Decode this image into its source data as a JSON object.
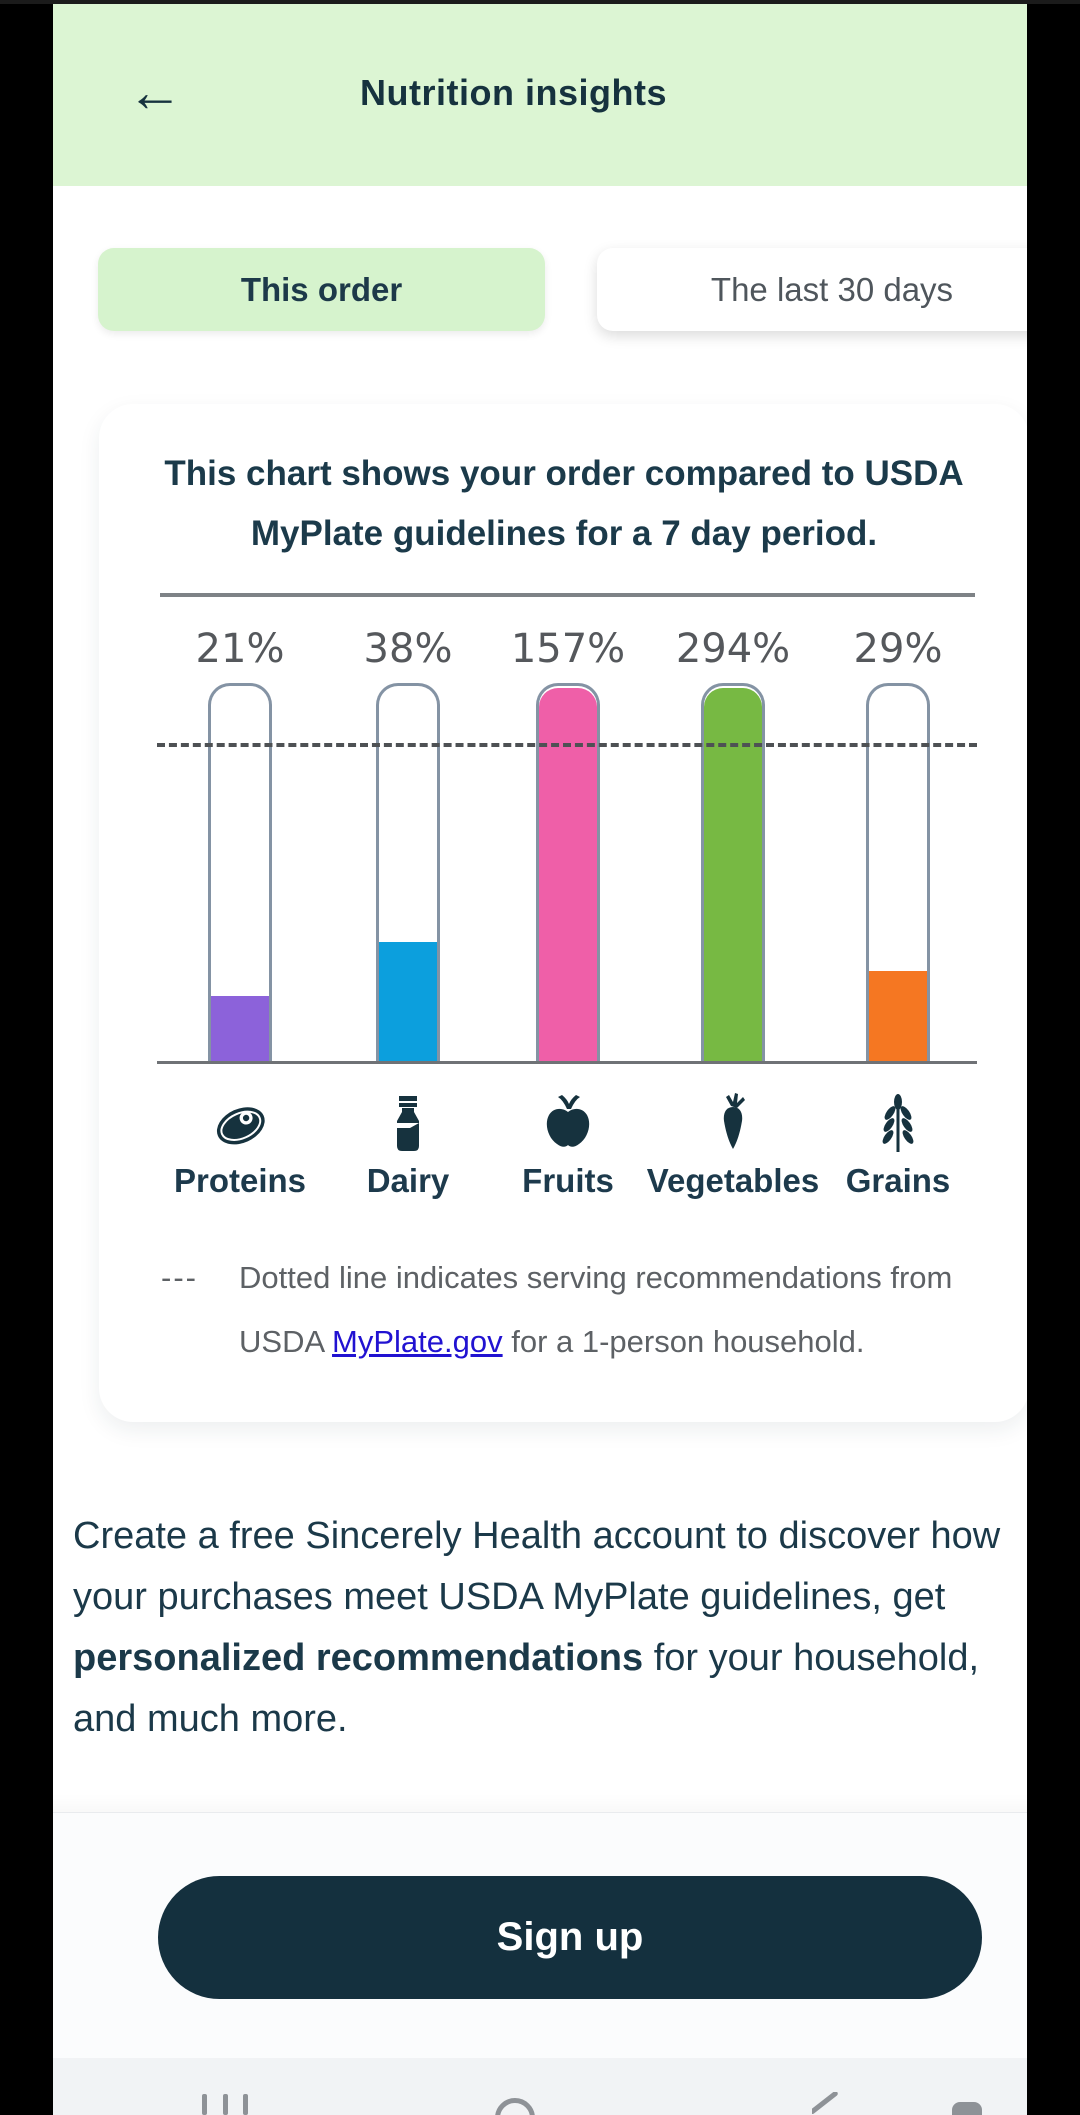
{
  "header": {
    "title": "Nutrition insights",
    "back_glyph": "←"
  },
  "tabs": [
    {
      "label": "This order",
      "selected": true
    },
    {
      "label": "The last 30 days",
      "selected": false
    }
  ],
  "card": {
    "title": "This chart shows your order compared to USDA MyPlate guidelines for a 7 day period.",
    "legend": {
      "marker": "---",
      "text_before_link": "Dotted line indicates serving recommendations from USDA ",
      "link_text": "MyPlate.gov",
      "text_after_link": " for a 1-person household."
    }
  },
  "chart_data": {
    "type": "bar",
    "title": "This chart shows your order compared to USDA MyPlate guidelines for a 7 day period.",
    "categories": [
      "Proteins",
      "Dairy",
      "Fruits",
      "Vegetables",
      "Grains"
    ],
    "values": [
      21,
      38,
      157,
      294,
      29
    ],
    "value_labels": [
      "21%",
      "38%",
      "157%",
      "294%",
      "29%"
    ],
    "unit": "percent of USDA MyPlate recommended servings over a 7 day period",
    "bar_colors": [
      "#8c62da",
      "#0c9fdd",
      "#ef5fa8",
      "#77b943",
      "#f57722"
    ],
    "icons": [
      "meat",
      "milk-bottle",
      "apple",
      "carrot",
      "wheat"
    ],
    "reference_line": {
      "value": 100,
      "style": "dotted",
      "label": "USDA MyPlate serving recommendation for a 1-person household"
    },
    "ylim": [
      0,
      120
    ],
    "grid": false,
    "legend_position": "below"
  },
  "cta": {
    "paragraph_before_bold": "Create a free Sincerely Health account to discover how your purchases meet USDA MyPlate guidelines, get ",
    "paragraph_bold": "personalized recommendations",
    "paragraph_after_bold": " for your household, and much more.",
    "button_label": "Sign up"
  },
  "colors": {
    "header_green": "#dcf5d3",
    "selected_tab_green": "#d6f3cd",
    "navy_text": "#16323e",
    "button_navy": "#14303e",
    "link_blue": "#2112d1",
    "tube_border": "#8493a4"
  }
}
